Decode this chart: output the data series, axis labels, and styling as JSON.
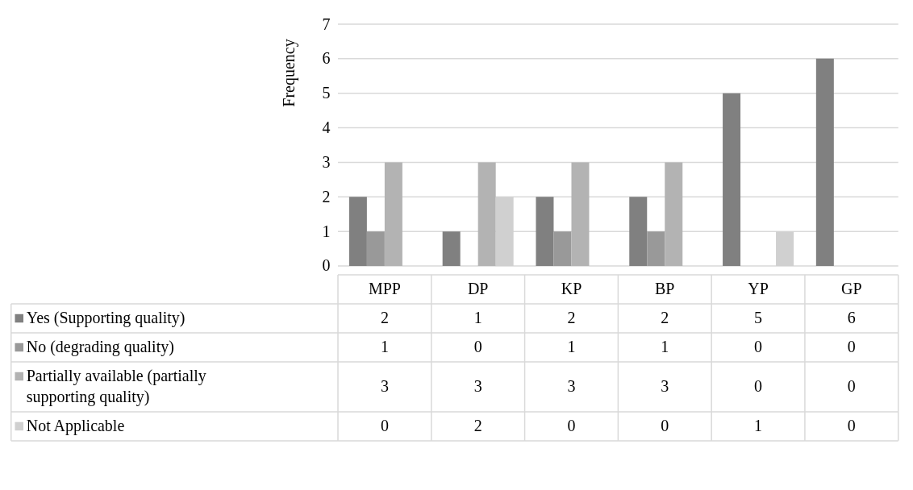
{
  "chart_data": {
    "type": "bar",
    "ylabel": "Frequency",
    "categories": [
      "MPP",
      "DP",
      "KP",
      "BP",
      "YP",
      "GP"
    ],
    "series": [
      {
        "name": "Yes (Supporting quality)",
        "color": "#808080",
        "values": [
          2,
          1,
          2,
          2,
          5,
          6
        ]
      },
      {
        "name": "No (degrading quality)",
        "color": "#999999",
        "values": [
          1,
          0,
          1,
          1,
          0,
          0
        ]
      },
      {
        "name": "Partially available (partially supporting quality)",
        "color": "#b3b3b3",
        "values": [
          3,
          3,
          3,
          3,
          0,
          0
        ]
      },
      {
        "name": "Not Applicable",
        "color": "#d0d0d0",
        "values": [
          0,
          2,
          0,
          0,
          1,
          0
        ]
      }
    ],
    "ylim": [
      0,
      7
    ],
    "yticks": [
      0,
      1,
      2,
      3,
      4,
      5,
      6,
      7
    ],
    "grid": "y",
    "data_labels": true,
    "legend": "bottom"
  }
}
